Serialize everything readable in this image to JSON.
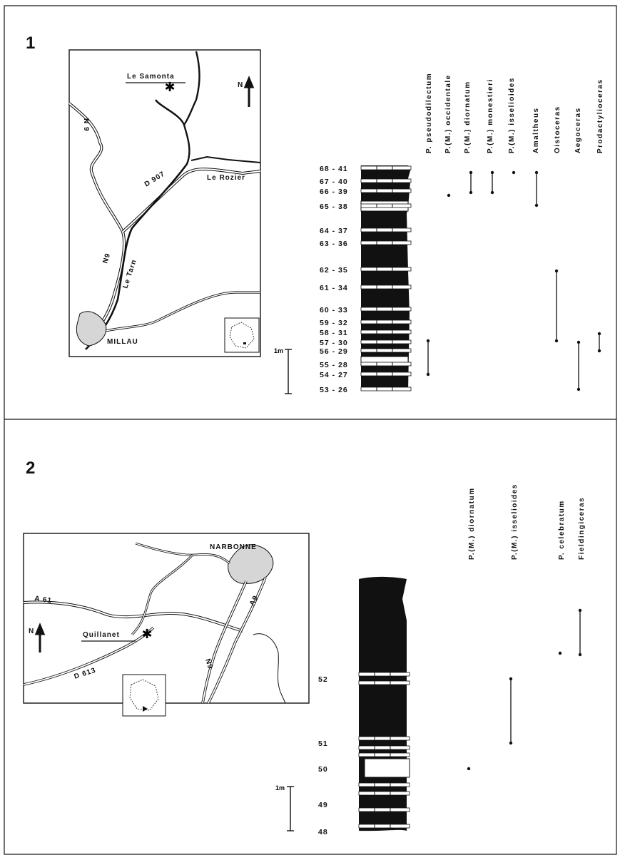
{
  "panel1": {
    "number": "1",
    "map": {
      "site": "Le Samonta",
      "north": "N",
      "roads": [
        "N 9",
        "D 907",
        "N9"
      ],
      "river": "Le Tarn",
      "town1": "Le Rozier",
      "town2": "MILLAU"
    },
    "scale": "1m",
    "beds": [
      "68 - 41",
      "67 - 40",
      "66 - 39",
      "65 - 38",
      "64 - 37",
      "63 - 36",
      "62 - 35",
      "61 - 34",
      "60 - 33",
      "59 - 32",
      "58 - 31",
      "57 - 30",
      "56 - 29",
      "55 - 28",
      "54 - 27",
      "53 - 26"
    ],
    "taxa": [
      "P. pseudodilectum",
      "P.(M.) occidentale",
      "P.(M.) diornatum",
      "P.(M.) monestieri",
      "P.(M.) isselioides",
      "Amaltheus",
      "Oistoceras",
      "Aegoceras",
      "Prodactylioceras"
    ]
  },
  "panel2": {
    "number": "2",
    "map": {
      "site": "Quillanet",
      "north": "N",
      "roads": [
        "A 61",
        "A9",
        "N9",
        "D 613"
      ],
      "town": "NARBONNE"
    },
    "scale": "1m",
    "beds": [
      "52",
      "51",
      "50",
      "49",
      "48"
    ],
    "taxa": [
      "P.(M.) diornatum",
      "P.(M.) isselioides",
      "P. celebratum",
      "Fieldingiceras"
    ]
  }
}
